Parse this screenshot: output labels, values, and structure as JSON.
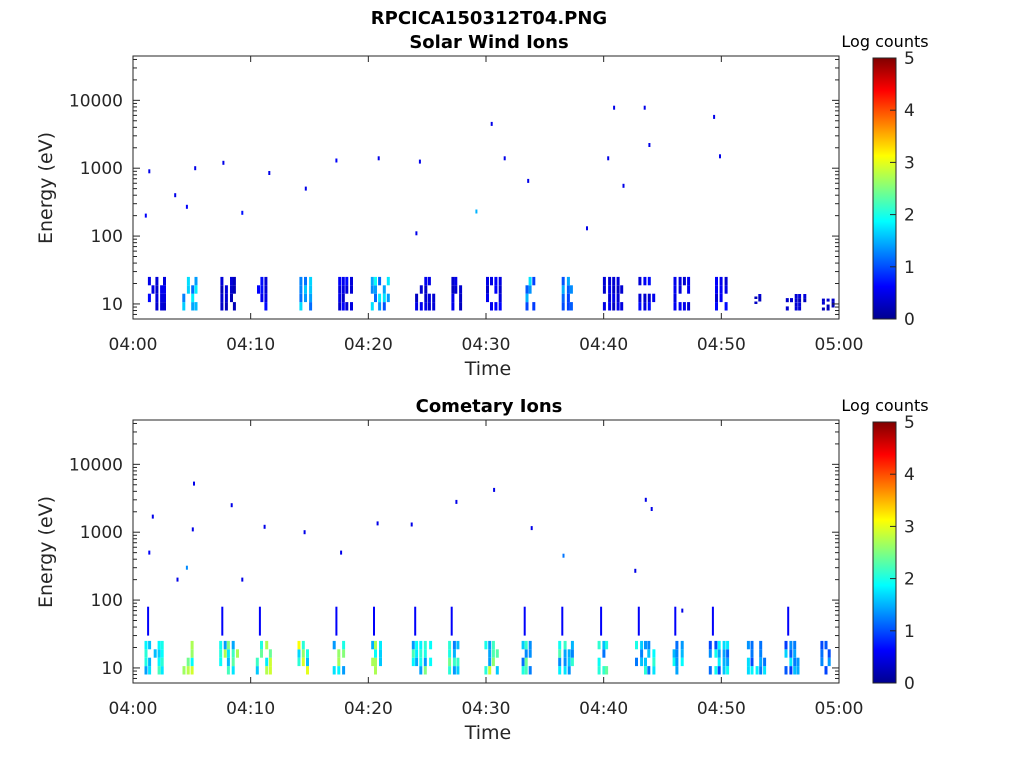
{
  "figure": {
    "title": "RPCICA150312T04.PNG"
  },
  "chart_data": [
    {
      "type": "heatmap",
      "title": "Solar Wind Ions",
      "xlabel": "Time",
      "ylabel": "Energy (eV)",
      "x_scale": "time",
      "x_range": [
        "04:00",
        "05:00"
      ],
      "x_ticks": [
        "04:00",
        "04:10",
        "04:20",
        "04:30",
        "04:40",
        "04:50",
        "05:00"
      ],
      "y_scale": "log",
      "y_range": [
        6,
        45000
      ],
      "y_ticks": [
        10,
        100,
        1000,
        10000
      ],
      "y_tick_labels": [
        "10",
        "100",
        "1000",
        "10000"
      ],
      "colorbar": {
        "label": "Log counts",
        "range": [
          0,
          5
        ],
        "ticks": [
          "0",
          "1",
          "2",
          "3",
          "4",
          "5"
        ],
        "colormap": "jet"
      },
      "series": [
        {
          "description": "low-energy bursts 8–25 eV, start minute and typical log count",
          "points": [
            {
              "t": 1.2,
              "e_low": 8,
              "e_high": 25,
              "c": 0.6
            },
            {
              "t": 4.2,
              "e_low": 8,
              "e_high": 25,
              "c": 1.6
            },
            {
              "t": 7.5,
              "e_low": 8,
              "e_high": 25,
              "c": 0.4
            },
            {
              "t": 10.5,
              "e_low": 8,
              "e_high": 25,
              "c": 0.7
            },
            {
              "t": 14.2,
              "e_low": 8,
              "e_high": 25,
              "c": 1.5
            },
            {
              "t": 17.4,
              "e_low": 8,
              "e_high": 25,
              "c": 0.6
            },
            {
              "t": 20.2,
              "e_low": 8,
              "e_high": 25,
              "c": 1.7
            },
            {
              "t": 24.0,
              "e_low": 8,
              "e_high": 25,
              "c": 0.5
            },
            {
              "t": 27.0,
              "e_low": 8,
              "e_high": 25,
              "c": 0.5
            },
            {
              "t": 30.0,
              "e_low": 8,
              "e_high": 25,
              "c": 0.6
            },
            {
              "t": 33.3,
              "e_low": 8,
              "e_high": 25,
              "c": 1.6
            },
            {
              "t": 36.5,
              "e_low": 8,
              "e_high": 25,
              "c": 1.4
            },
            {
              "t": 40.0,
              "e_low": 8,
              "e_high": 25,
              "c": 0.5
            },
            {
              "t": 43.0,
              "e_low": 8,
              "e_high": 25,
              "c": 0.6
            },
            {
              "t": 46.0,
              "e_low": 8,
              "e_high": 25,
              "c": 0.5
            },
            {
              "t": 49.5,
              "e_low": 8,
              "e_high": 25,
              "c": 0.6
            },
            {
              "t": 52.5,
              "e_low": 10,
              "e_high": 14,
              "c": 0.4
            },
            {
              "t": 55.5,
              "e_low": 8,
              "e_high": 14,
              "c": 0.4
            },
            {
              "t": 58.6,
              "e_low": 8,
              "e_high": 12,
              "c": 0.4
            }
          ]
        },
        {
          "description": "sparse high-energy counts",
          "points": [
            {
              "t": 1.0,
              "e": 200,
              "c": 0.6
            },
            {
              "t": 1.3,
              "e": 900,
              "c": 0.5
            },
            {
              "t": 3.5,
              "e": 400,
              "c": 0.5
            },
            {
              "t": 4.5,
              "e": 270,
              "c": 0.6
            },
            {
              "t": 5.2,
              "e": 1000,
              "c": 0.5
            },
            {
              "t": 7.6,
              "e": 1200,
              "c": 0.5
            },
            {
              "t": 9.2,
              "e": 220,
              "c": 0.7
            },
            {
              "t": 11.5,
              "e": 850,
              "c": 0.5
            },
            {
              "t": 14.6,
              "e": 500,
              "c": 0.5
            },
            {
              "t": 17.2,
              "e": 1300,
              "c": 0.6
            },
            {
              "t": 20.8,
              "e": 1400,
              "c": 0.5
            },
            {
              "t": 24.0,
              "e": 110,
              "c": 0.5
            },
            {
              "t": 24.3,
              "e": 1250,
              "c": 0.5
            },
            {
              "t": 29.1,
              "e": 230,
              "c": 1.5
            },
            {
              "t": 30.4,
              "e": 4500,
              "c": 0.5
            },
            {
              "t": 31.5,
              "e": 1400,
              "c": 0.5
            },
            {
              "t": 33.5,
              "e": 650,
              "c": 0.5
            },
            {
              "t": 38.5,
              "e": 130,
              "c": 0.5
            },
            {
              "t": 40.3,
              "e": 1400,
              "c": 0.5
            },
            {
              "t": 40.8,
              "e": 7800,
              "c": 0.5
            },
            {
              "t": 41.6,
              "e": 550,
              "c": 0.5
            },
            {
              "t": 43.4,
              "e": 7800,
              "c": 0.5
            },
            {
              "t": 43.8,
              "e": 2200,
              "c": 0.5
            },
            {
              "t": 49.3,
              "e": 5700,
              "c": 0.5
            },
            {
              "t": 49.8,
              "e": 1500,
              "c": 0.5
            }
          ]
        }
      ]
    },
    {
      "type": "heatmap",
      "title": "Cometary Ions",
      "xlabel": "Time",
      "ylabel": "Energy (eV)",
      "x_scale": "time",
      "x_range": [
        "04:00",
        "05:00"
      ],
      "x_ticks": [
        "04:00",
        "04:10",
        "04:20",
        "04:30",
        "04:40",
        "04:50",
        "05:00"
      ],
      "y_scale": "log",
      "y_range": [
        6,
        45000
      ],
      "y_ticks": [
        10,
        100,
        1000,
        10000
      ],
      "y_tick_labels": [
        "10",
        "100",
        "1000",
        "10000"
      ],
      "colorbar": {
        "label": "Log counts",
        "range": [
          0,
          5
        ],
        "ticks": [
          "0",
          "1",
          "2",
          "3",
          "4",
          "5"
        ],
        "colormap": "jet"
      },
      "series": [
        {
          "description": "low-energy bursts 8–25 eV, start minute and peak log count",
          "points": [
            {
              "t": 1.0,
              "e_low": 8,
              "e_high": 25,
              "c": 2.3
            },
            {
              "t": 4.2,
              "e_low": 8,
              "e_high": 25,
              "c": 2.7
            },
            {
              "t": 7.3,
              "e_low": 8,
              "e_high": 25,
              "c": 2.4
            },
            {
              "t": 10.5,
              "e_low": 8,
              "e_high": 25,
              "c": 2.6
            },
            {
              "t": 14.0,
              "e_low": 8,
              "e_high": 25,
              "c": 2.7
            },
            {
              "t": 17.0,
              "e_low": 8,
              "e_high": 25,
              "c": 2.4
            },
            {
              "t": 20.2,
              "e_low": 8,
              "e_high": 25,
              "c": 2.6
            },
            {
              "t": 23.7,
              "e_low": 8,
              "e_high": 25,
              "c": 2.3
            },
            {
              "t": 26.8,
              "e_low": 8,
              "e_high": 25,
              "c": 2.2
            },
            {
              "t": 29.8,
              "e_low": 8,
              "e_high": 25,
              "c": 2.5
            },
            {
              "t": 33.0,
              "e_low": 8,
              "e_high": 25,
              "c": 2.1
            },
            {
              "t": 36.2,
              "e_low": 8,
              "e_high": 25,
              "c": 2.0
            },
            {
              "t": 39.5,
              "e_low": 8,
              "e_high": 25,
              "c": 2.1
            },
            {
              "t": 42.7,
              "e_low": 8,
              "e_high": 25,
              "c": 1.9
            },
            {
              "t": 45.8,
              "e_low": 8,
              "e_high": 25,
              "c": 1.9
            },
            {
              "t": 49.0,
              "e_low": 8,
              "e_high": 25,
              "c": 1.7
            },
            {
              "t": 52.2,
              "e_low": 8,
              "e_high": 25,
              "c": 1.6
            },
            {
              "t": 55.4,
              "e_low": 8,
              "e_high": 25,
              "c": 1.6
            },
            {
              "t": 58.4,
              "e_low": 8,
              "e_high": 25,
              "c": 1.5
            }
          ]
        },
        {
          "description": "sparse high-energy counts",
          "points": [
            {
              "t": 1.6,
              "e": 1700,
              "c": 0.5
            },
            {
              "t": 1.3,
              "e": 500,
              "c": 0.6
            },
            {
              "t": 3.7,
              "e": 200,
              "c": 0.5
            },
            {
              "t": 4.5,
              "e": 300,
              "c": 1.3
            },
            {
              "t": 5.1,
              "e": 5200,
              "c": 0.5
            },
            {
              "t": 5.0,
              "e": 1100,
              "c": 0.5
            },
            {
              "t": 8.3,
              "e": 2500,
              "c": 0.5
            },
            {
              "t": 9.2,
              "e": 200,
              "c": 0.5
            },
            {
              "t": 11.1,
              "e": 1200,
              "c": 0.5
            },
            {
              "t": 14.5,
              "e": 1000,
              "c": 0.5
            },
            {
              "t": 17.6,
              "e": 500,
              "c": 0.5
            },
            {
              "t": 20.7,
              "e": 1350,
              "c": 0.5
            },
            {
              "t": 23.6,
              "e": 1300,
              "c": 0.5
            },
            {
              "t": 27.4,
              "e": 2800,
              "c": 0.5
            },
            {
              "t": 30.6,
              "e": 4200,
              "c": 0.5
            },
            {
              "t": 33.8,
              "e": 1150,
              "c": 0.5
            },
            {
              "t": 36.5,
              "e": 450,
              "c": 1.2
            },
            {
              "t": 42.6,
              "e": 270,
              "c": 0.5
            },
            {
              "t": 43.5,
              "e": 3000,
              "c": 0.5
            },
            {
              "t": 44.0,
              "e": 2200,
              "c": 0.5
            },
            {
              "t": 46.6,
              "e": 70,
              "c": 0.5
            }
          ]
        }
      ]
    }
  ]
}
